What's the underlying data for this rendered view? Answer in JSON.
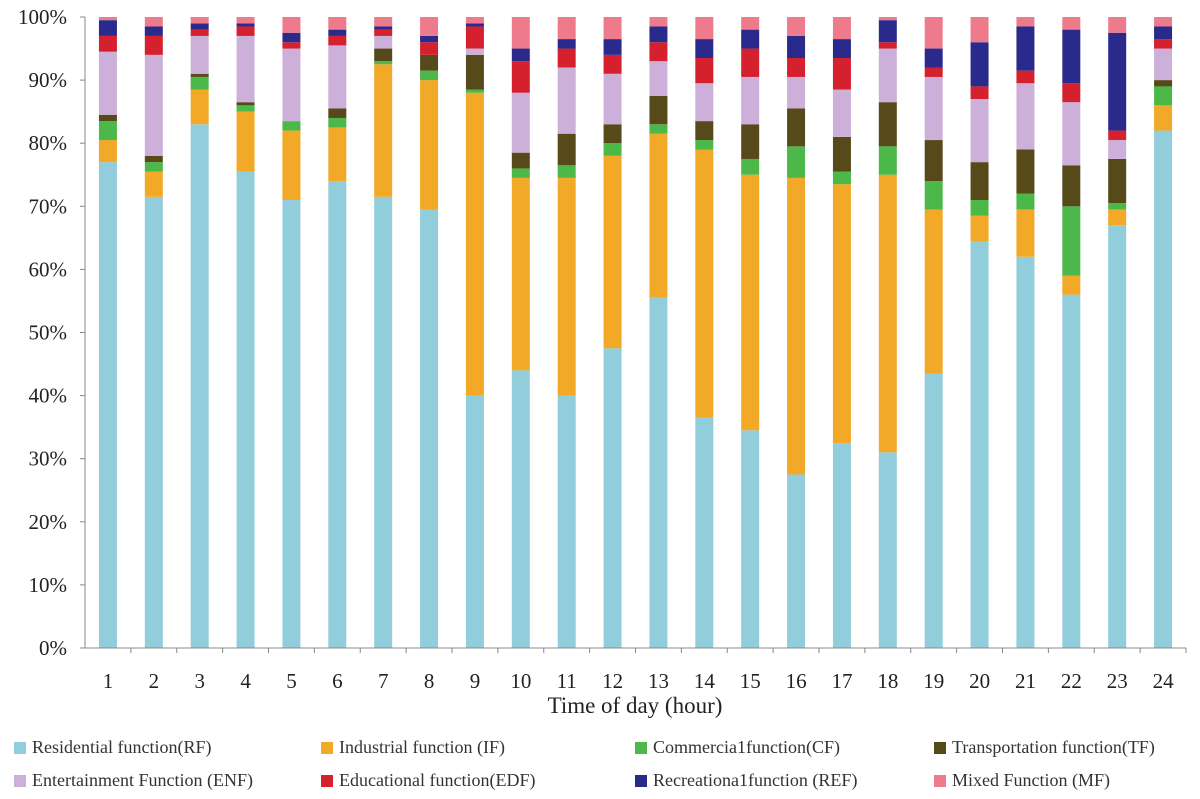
{
  "chart_data": {
    "type": "bar",
    "stacked": true,
    "percent": true,
    "title": "",
    "xlabel": "Time of day (hour)",
    "ylabel": "",
    "ylim": [
      0,
      100
    ],
    "yticks": [
      "0%",
      "10%",
      "20%",
      "30%",
      "40%",
      "50%",
      "60%",
      "70%",
      "80%",
      "90%",
      "100%"
    ],
    "grid": false,
    "legend_position": "bottom",
    "categories": [
      "1",
      "2",
      "3",
      "4",
      "5",
      "6",
      "7",
      "8",
      "9",
      "10",
      "11",
      "12",
      "13",
      "14",
      "15",
      "16",
      "17",
      "18",
      "19",
      "20",
      "21",
      "22",
      "23",
      "24"
    ],
    "series": [
      {
        "name": "Residential function(RF)",
        "color": "#92CDDC",
        "values": [
          77.0,
          71.5,
          83.0,
          75.5,
          71.0,
          74.0,
          71.5,
          69.5,
          40.0,
          44.0,
          40.0,
          47.5,
          55.5,
          36.5,
          34.5,
          27.5,
          32.5,
          31.0,
          43.5,
          64.5,
          62.0,
          56.0,
          67.0,
          82.0
        ]
      },
      {
        "name": "Industrial function (IF)",
        "color": "#F2A928",
        "values": [
          3.5,
          4.0,
          5.5,
          9.5,
          11.0,
          8.5,
          21.0,
          20.5,
          48.0,
          30.5,
          34.5,
          30.5,
          26.0,
          42.5,
          40.5,
          47.0,
          41.0,
          44.0,
          26.0,
          4.0,
          7.5,
          3.0,
          2.5,
          4.0
        ]
      },
      {
        "name": "Commercial function(CF)",
        "color": "#4CB849",
        "values": [
          3.0,
          1.5,
          2.0,
          1.0,
          1.5,
          1.5,
          0.5,
          1.5,
          0.5,
          1.5,
          2.0,
          2.0,
          1.5,
          1.5,
          2.5,
          5.0,
          2.0,
          4.5,
          4.5,
          2.5,
          2.5,
          11.0,
          1.0,
          3.0
        ]
      },
      {
        "name": "Transportation function(TF)",
        "color": "#574A1A",
        "values": [
          1.0,
          1.0,
          0.5,
          0.5,
          0.0,
          1.5,
          2.0,
          2.5,
          5.5,
          2.5,
          5.0,
          3.0,
          4.5,
          3.0,
          5.5,
          6.0,
          5.5,
          7.0,
          6.5,
          6.0,
          7.0,
          6.5,
          7.0,
          1.0
        ]
      },
      {
        "name": "Entertainment Function (ENF)",
        "color": "#CCB0D9",
        "values": [
          10.0,
          16.0,
          6.0,
          10.5,
          11.5,
          10.0,
          2.0,
          0.0,
          1.0,
          9.5,
          10.5,
          8.0,
          5.5,
          6.0,
          7.5,
          5.0,
          7.5,
          8.5,
          10.0,
          10.0,
          10.5,
          10.0,
          3.0,
          5.0
        ]
      },
      {
        "name": "Educational function(EDF)",
        "color": "#D5202E",
        "values": [
          2.5,
          3.0,
          1.0,
          1.5,
          1.0,
          1.5,
          1.0,
          2.0,
          3.5,
          5.0,
          3.0,
          3.0,
          3.0,
          4.0,
          4.5,
          3.0,
          5.0,
          1.0,
          1.5,
          2.0,
          2.0,
          3.0,
          1.5,
          1.5
        ]
      },
      {
        "name": "Recreational function (REF)",
        "color": "#2A2A8C",
        "values": [
          2.5,
          1.5,
          1.0,
          0.5,
          1.5,
          1.0,
          0.5,
          1.0,
          0.5,
          2.0,
          1.5,
          2.5,
          2.5,
          3.0,
          3.0,
          3.5,
          3.0,
          3.5,
          3.0,
          7.0,
          7.0,
          8.5,
          15.5,
          2.0
        ]
      },
      {
        "name": "Mixed Function (MF)",
        "color": "#EE7B8B",
        "values": [
          0.5,
          1.5,
          1.0,
          1.0,
          2.5,
          2.0,
          1.5,
          3.0,
          1.0,
          5.0,
          3.5,
          3.5,
          1.5,
          3.5,
          2.0,
          3.0,
          3.5,
          0.5,
          5.0,
          4.0,
          1.5,
          2.0,
          2.5,
          1.5
        ]
      }
    ]
  },
  "legend": {
    "items": [
      {
        "label": "Residential function(RF)",
        "color": "#92CDDC"
      },
      {
        "label": "Industrial function (IF)",
        "color": "#F2A928"
      },
      {
        "label": "Commercia1function(CF)",
        "color": "#4CB849"
      },
      {
        "label": "Transportation function(TF)",
        "color": "#574A1A"
      },
      {
        "label": "Entertainment Function (ENF)",
        "color": "#CCB0D9"
      },
      {
        "label": "Educational function(EDF)",
        "color": "#D5202E"
      },
      {
        "label": "Recreationa1function (REF)",
        "color": "#2A2A8C"
      },
      {
        "label": "Mixed Function (MF)",
        "color": "#EE7B8B"
      }
    ]
  }
}
